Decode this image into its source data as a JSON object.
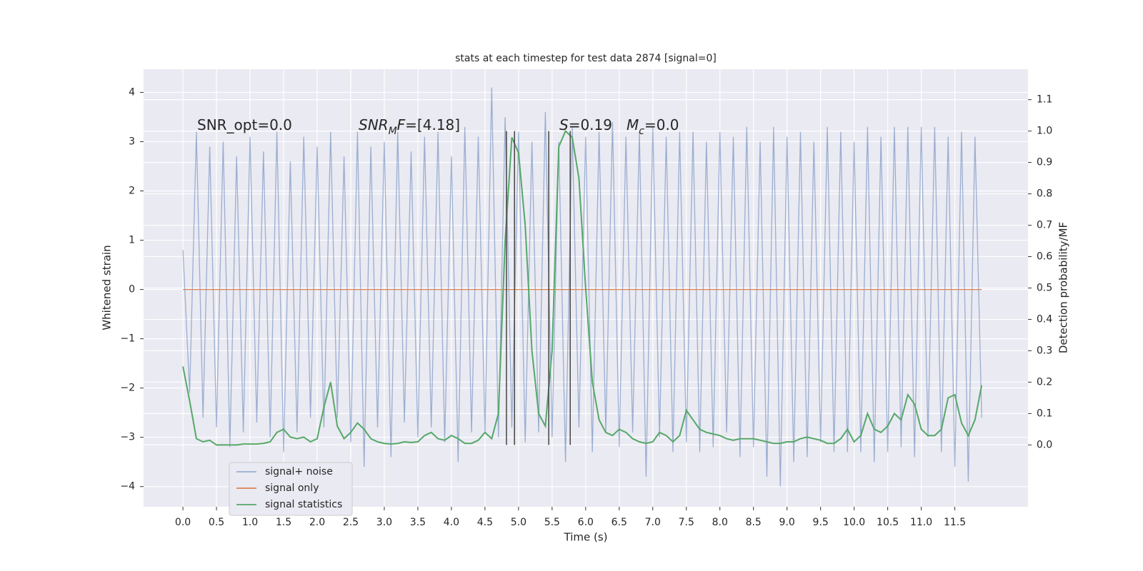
{
  "chart_data": {
    "type": "line",
    "title": "stats at each timestep for test data 2874 [signal=0]",
    "xlabel": "Time (s)",
    "ylabel": "Whitened strain",
    "y2label": "Detection probability/MF",
    "xlim": [
      -0.586,
      12.59
    ],
    "ylim": [
      -4.41,
      4.47
    ],
    "y2lim": [
      -0.197,
      1.197
    ],
    "xticks": [
      {
        "value": 0,
        "label": "0.0"
      },
      0.5,
      {
        "value": 1,
        "label": "1.0"
      },
      1.5,
      {
        "value": 2,
        "label": "2.0"
      },
      2.5,
      {
        "value": 3,
        "label": "3.0"
      },
      3.5,
      {
        "value": 4,
        "label": "4.0"
      },
      4.5,
      {
        "value": 5,
        "label": "5.0"
      },
      5.5,
      {
        "value": 6,
        "label": "6.0"
      },
      6.5,
      {
        "value": 7,
        "label": "7.0"
      },
      7.5,
      {
        "value": 8,
        "label": "8.0"
      },
      8.5,
      {
        "value": 9,
        "label": "9.0"
      },
      9.5,
      {
        "value": 10,
        "label": "10.0"
      },
      10.5,
      {
        "value": 11,
        "label": "11.0"
      },
      11.5
    ],
    "yticks": [
      {
        "value": -4,
        "label": "−4"
      },
      {
        "value": -3,
        "label": "−3"
      },
      {
        "value": -2,
        "label": "−2"
      },
      {
        "value": -1,
        "label": "−1"
      },
      0,
      1,
      2,
      3,
      4
    ],
    "y2ticks": [
      {
        "value": 0,
        "label": "0.0"
      },
      0.1,
      0.2,
      0.3,
      0.4,
      0.5,
      0.6,
      0.7,
      0.8,
      0.9,
      {
        "value": 1,
        "label": "1.0"
      },
      1.1
    ],
    "grid": true,
    "legend": "lower left",
    "x": [
      0,
      0.1,
      0.2,
      0.3,
      0.4,
      0.5,
      0.6,
      0.7,
      0.8,
      0.9,
      1,
      1.1,
      1.2,
      1.3,
      1.4,
      1.5,
      1.6,
      1.7,
      1.8,
      1.9,
      2,
      2.1,
      2.2,
      2.3,
      2.4,
      2.5,
      2.6,
      2.7,
      2.8,
      2.9,
      3,
      3.1,
      3.2,
      3.3,
      3.4,
      3.5,
      3.6,
      3.7,
      3.8,
      3.9,
      4,
      4.1,
      4.2,
      4.3,
      4.4,
      4.5,
      4.6,
      4.7,
      4.8,
      4.9,
      5,
      5.1,
      5.2,
      5.3,
      5.4,
      5.5,
      5.6,
      5.7,
      5.8,
      5.9,
      6,
      6.1,
      6.2,
      6.3,
      6.4,
      6.5,
      6.6,
      6.7,
      6.8,
      6.9,
      7,
      7.1,
      7.2,
      7.3,
      7.4,
      7.5,
      7.6,
      7.7,
      7.8,
      7.9,
      8,
      8.1,
      8.2,
      8.3,
      8.4,
      8.5,
      8.6,
      8.7,
      8.8,
      8.9,
      9,
      9.1,
      9.2,
      9.3,
      9.4,
      9.5,
      9.6,
      9.7,
      9.8,
      9.9,
      10,
      10.1,
      10.2,
      10.3,
      10.4,
      10.5,
      10.6,
      10.7,
      10.8,
      10.9,
      11,
      11.1,
      11.2,
      11.3,
      11.4,
      11.5,
      11.6,
      11.7,
      11.8,
      11.9
    ],
    "series": [
      {
        "name": "signal+ noise",
        "color": "#4c72b0",
        "alpha": 0.5,
        "values": [
          0.8,
          -2.1,
          3.2,
          -2.6,
          2.9,
          -2.8,
          3.0,
          -3.2,
          2.7,
          -2.9,
          3.1,
          -2.7,
          2.8,
          -3.0,
          3.2,
          -3.3,
          2.6,
          -2.9,
          3.1,
          -2.6,
          2.9,
          -2.8,
          3.2,
          -2.6,
          2.7,
          -3.1,
          3.2,
          -3.6,
          2.9,
          -2.8,
          3.0,
          -3.4,
          3.2,
          -2.7,
          2.8,
          -3.0,
          3.1,
          -2.8,
          3.2,
          -3.1,
          2.7,
          -3.5,
          3.3,
          -2.9,
          3.1,
          -2.9,
          4.1,
          -3.0,
          3.5,
          -2.8,
          3.2,
          -3.1,
          3.0,
          -2.9,
          3.6,
          -3.0,
          3.0,
          -3.5,
          3.3,
          -2.8,
          3.1,
          -3.3,
          3.2,
          -2.9,
          3.4,
          -3.2,
          3.1,
          -2.9,
          3.2,
          -3.8,
          3.3,
          -3.0,
          3.1,
          -3.3,
          3.2,
          -3.1,
          3.2,
          -3.3,
          3.0,
          -3.2,
          3.2,
          -2.9,
          3.1,
          -3.4,
          3.3,
          -3.2,
          3.0,
          -3.8,
          3.3,
          -4.0,
          3.1,
          -3.5,
          3.2,
          -3.4,
          3.0,
          -3.1,
          3.3,
          -3.3,
          3.2,
          -3.3,
          3.0,
          -3.3,
          3.3,
          -3.5,
          3.1,
          -3.3,
          3.3,
          -3.2,
          3.3,
          -3.4,
          3.3,
          -3.0,
          3.3,
          -3.3,
          3.1,
          -3.6,
          3.2,
          -3.9,
          3.1,
          -2.6
        ]
      },
      {
        "name": "signal only",
        "color": "#dd8452",
        "x": [
          0,
          11.9
        ],
        "values": [
          0,
          0
        ]
      },
      {
        "name": "signal statistics",
        "color": "#55a868",
        "axis": "y2",
        "values": [
          0.25,
          0.14,
          0.02,
          0.01,
          0.015,
          0,
          0,
          0,
          0,
          0.003,
          0.003,
          0.003,
          0.005,
          0.01,
          0.04,
          0.05,
          0.025,
          0.02,
          0.025,
          0.01,
          0.02,
          0.12,
          0.2,
          0.06,
          0.02,
          0.04,
          0.07,
          0.05,
          0.02,
          0.01,
          0.005,
          0.003,
          0.005,
          0.01,
          0.008,
          0.01,
          0.03,
          0.04,
          0.02,
          0.015,
          0.03,
          0.02,
          0.005,
          0.005,
          0.015,
          0.04,
          0.02,
          0.1,
          0.65,
          0.98,
          0.93,
          0.7,
          0.3,
          0.1,
          0.06,
          0.3,
          0.95,
          1.0,
          0.98,
          0.85,
          0.5,
          0.2,
          0.08,
          0.04,
          0.03,
          0.05,
          0.04,
          0.02,
          0.01,
          0.005,
          0.01,
          0.04,
          0.03,
          0.01,
          0.03,
          0.11,
          0.08,
          0.05,
          0.04,
          0.035,
          0.03,
          0.02,
          0.015,
          0.02,
          0.02,
          0.02,
          0.015,
          0.01,
          0.005,
          0.005,
          0.01,
          0.01,
          0.02,
          0.025,
          0.02,
          0.015,
          0.005,
          0.005,
          0.02,
          0.05,
          0.01,
          0.03,
          0.1,
          0.05,
          0.04,
          0.06,
          0.1,
          0.08,
          0.16,
          0.13,
          0.05,
          0.03,
          0.03,
          0.05,
          0.15,
          0.16,
          0.07,
          0.03,
          0.08,
          0.19
        ]
      }
    ],
    "vlines": [
      4.82,
      4.94,
      5.45,
      5.77
    ],
    "vline_color": "#444444",
    "vline_y2range": [
      0,
      1
    ],
    "annotations": [
      [
        {
          "text": "SNR_opt=0.0"
        }
      ],
      [
        {
          "text": "SNR",
          "italic": true
        },
        {
          "text": "M",
          "italic": true,
          "sub": true
        },
        {
          "text": "F",
          "italic": true
        },
        {
          "text": "=[4.18]"
        }
      ],
      [
        {
          "text": "S",
          "italic": true
        },
        {
          "text": "=0.19"
        }
      ],
      [
        {
          "text": "M",
          "italic": true
        },
        {
          "text": "c",
          "italic": true,
          "sub": true
        },
        {
          "text": "=0.0"
        }
      ]
    ]
  }
}
